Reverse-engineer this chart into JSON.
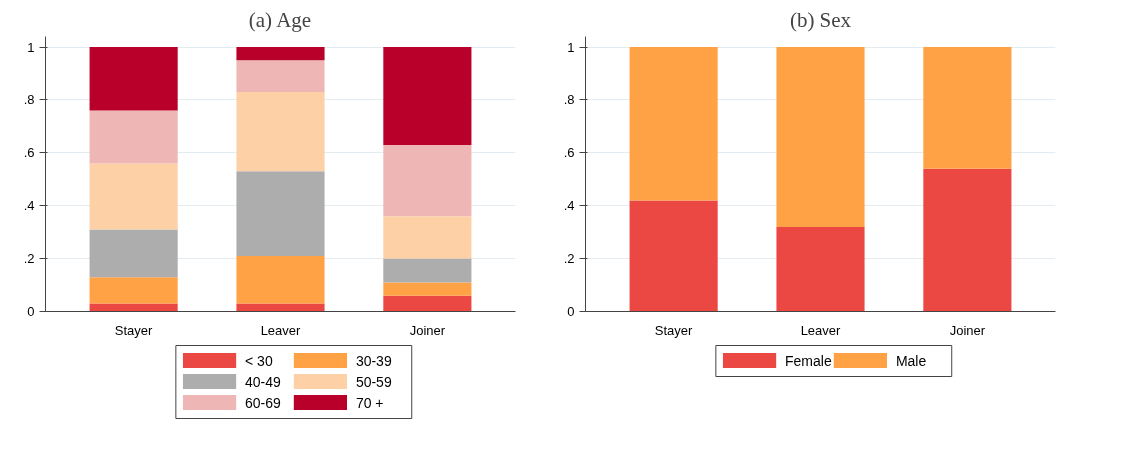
{
  "chart_data": [
    {
      "type": "bar",
      "title": "(a) Age",
      "stacked": true,
      "categories": [
        "Stayer",
        "Leaver",
        "Joiner"
      ],
      "ylim": [
        0,
        1.04
      ],
      "yticks": [
        0,
        {
          "value": 0.2,
          "label": ".2"
        },
        {
          "value": 0.4,
          "label": ".4"
        },
        {
          "value": 0.6,
          "label": ".6"
        },
        {
          "value": 0.8,
          "label": ".8"
        },
        1
      ],
      "grid": "y",
      "legend": "bottom",
      "series": [
        {
          "name": "< 30",
          "color": "#ec4843",
          "values": [
            0.03,
            0.03,
            0.06
          ]
        },
        {
          "name": "30-39",
          "color": "#ffa245",
          "values": [
            0.1,
            0.18,
            0.05
          ]
        },
        {
          "name": "40-49",
          "color": "#adadad",
          "values": [
            0.18,
            0.32,
            0.09
          ]
        },
        {
          "name": "50-59",
          "color": "#fdd0a6",
          "values": [
            0.25,
            0.3,
            0.16
          ]
        },
        {
          "name": "60-69",
          "color": "#eeb6b4",
          "values": [
            0.2,
            0.12,
            0.27
          ]
        },
        {
          "name": "70 +",
          "color": "#b8002a",
          "values": [
            0.24,
            0.05,
            0.37
          ]
        }
      ]
    },
    {
      "type": "bar",
      "title": "(b) Sex",
      "stacked": true,
      "categories": [
        "Stayer",
        "Leaver",
        "Joiner"
      ],
      "ylim": [
        0,
        1.04
      ],
      "yticks": [
        0,
        {
          "value": 0.2,
          "label": ".2"
        },
        {
          "value": 0.4,
          "label": ".4"
        },
        {
          "value": 0.6,
          "label": ".6"
        },
        {
          "value": 0.8,
          "label": ".8"
        },
        1
      ],
      "grid": "y",
      "legend": "bottom",
      "series": [
        {
          "name": "Female",
          "color": "#ec4843",
          "values": [
            0.42,
            0.32,
            0.54
          ]
        },
        {
          "name": "Male",
          "color": "#ffa245",
          "values": [
            0.58,
            0.68,
            0.46
          ]
        }
      ]
    }
  ]
}
